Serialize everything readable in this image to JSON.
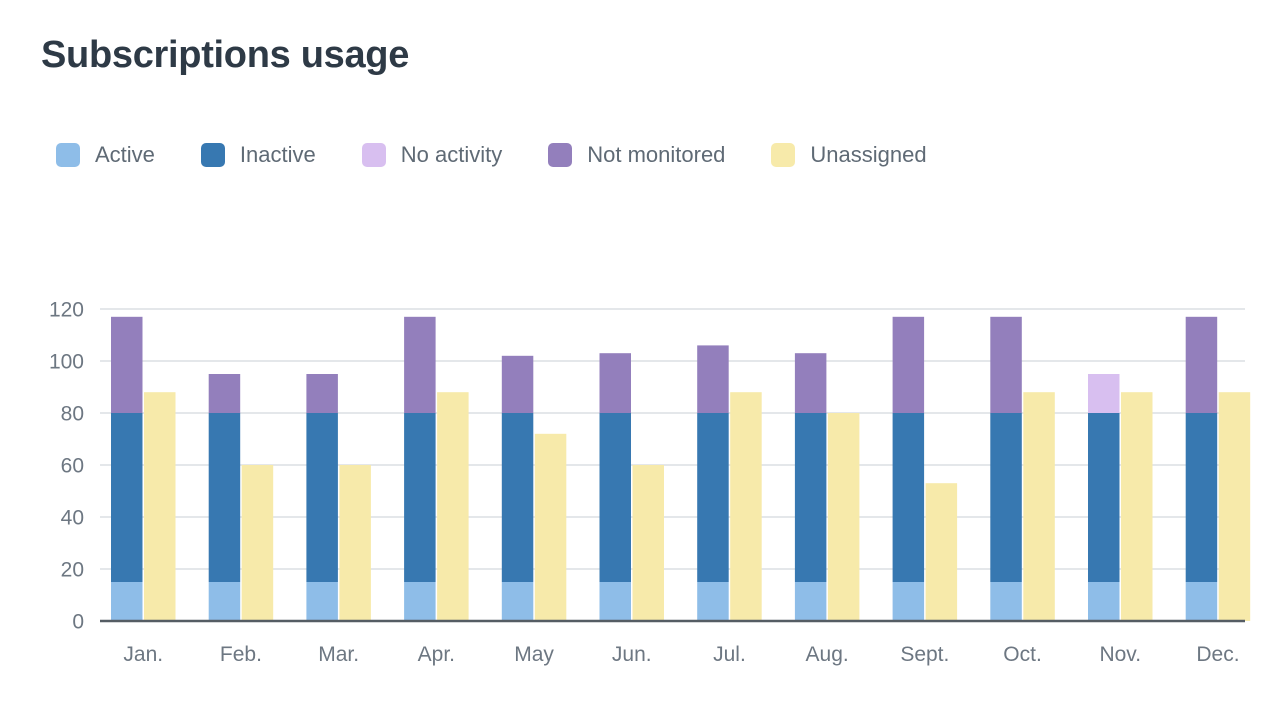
{
  "chart_data": {
    "type": "bar",
    "title": "Subscriptions usage",
    "stacked": true,
    "categories": [
      "Jan.",
      "Feb.",
      "Mar.",
      "Apr.",
      "May",
      "Jun.",
      "Jul.",
      "Aug.",
      "Sept.",
      "Oct.",
      "Nov.",
      "Dec."
    ],
    "ylim": [
      0,
      120
    ],
    "yticks": [
      0,
      20,
      40,
      60,
      80,
      100,
      120
    ],
    "grid": true,
    "legend_position": "top-left",
    "series": [
      {
        "name": "Active",
        "color": "#8ebde8",
        "stack": "assigned",
        "values": [
          15,
          15,
          15,
          15,
          15,
          15,
          15,
          15,
          15,
          15,
          15,
          15
        ]
      },
      {
        "name": "Inactive",
        "color": "#3778b1",
        "stack": "assigned",
        "values": [
          65,
          65,
          65,
          65,
          65,
          65,
          65,
          65,
          65,
          65,
          65,
          65
        ]
      },
      {
        "name": "No activity",
        "color": "#d8bff0",
        "stack": "assigned",
        "values": [
          0,
          0,
          0,
          0,
          0,
          0,
          0,
          0,
          0,
          0,
          15,
          0
        ]
      },
      {
        "name": "Not monitored",
        "color": "#937fbc",
        "stack": "assigned",
        "values": [
          37,
          15,
          15,
          37,
          22,
          23,
          26,
          23,
          37,
          37,
          0,
          37
        ]
      },
      {
        "name": "Unassigned",
        "color": "#f7eaaa",
        "stack": "unassigned",
        "values": [
          88,
          60,
          60,
          88,
          72,
          60,
          88,
          80,
          53,
          88,
          88,
          88
        ]
      }
    ]
  }
}
